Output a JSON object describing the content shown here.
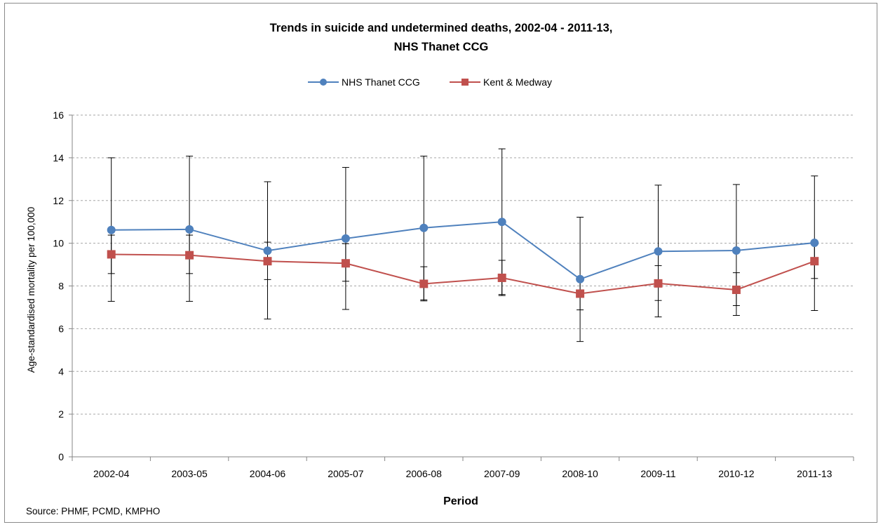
{
  "chart_data": {
    "type": "line",
    "title_line1": "Trends in suicide and undetermined deaths, 2002-04 - 2011-13,",
    "title_line2": "NHS Thanet CCG",
    "xlabel": "Period",
    "ylabel": "Age-standardised mortality per 100,000",
    "source": "Source: PHMF, PCMD, KMPHO",
    "categories": [
      "2002-04",
      "2003-05",
      "2004-06",
      "2005-07",
      "2006-08",
      "2007-09",
      "2008-10",
      "2009-11",
      "2010-12",
      "2011-13"
    ],
    "ylim": [
      0,
      16
    ],
    "yticks": [
      0,
      2,
      4,
      6,
      8,
      10,
      12,
      14,
      16
    ],
    "ytick_labels": [
      "0",
      "2",
      "4",
      "6",
      "8",
      "10",
      "12",
      "14",
      "16"
    ],
    "grid": true,
    "legend_position": "top",
    "series": [
      {
        "name": "NHS Thanet CCG",
        "color": "#4f81bd",
        "marker": "circle",
        "values": [
          10.62,
          10.65,
          9.65,
          10.22,
          10.72,
          11.0,
          8.32,
          9.62,
          9.66,
          10.02
        ],
        "ci_low": [
          7.28,
          7.28,
          6.45,
          6.9,
          7.3,
          7.6,
          5.4,
          6.55,
          6.62,
          6.85
        ],
        "ci_high": [
          14.0,
          14.08,
          12.88,
          13.55,
          14.08,
          14.42,
          11.22,
          12.72,
          12.75,
          13.15
        ]
      },
      {
        "name": "Kent & Medway",
        "color": "#c0504d",
        "marker": "square",
        "values": [
          9.48,
          9.44,
          9.16,
          9.06,
          8.1,
          8.38,
          7.64,
          8.12,
          7.82,
          9.16
        ],
        "ci_low": [
          8.58,
          8.58,
          8.3,
          8.22,
          7.35,
          7.55,
          6.88,
          7.32,
          7.08,
          8.35
        ],
        "ci_high": [
          10.38,
          10.38,
          10.05,
          9.98,
          8.9,
          9.2,
          8.4,
          8.95,
          8.62,
          9.98
        ]
      }
    ]
  }
}
